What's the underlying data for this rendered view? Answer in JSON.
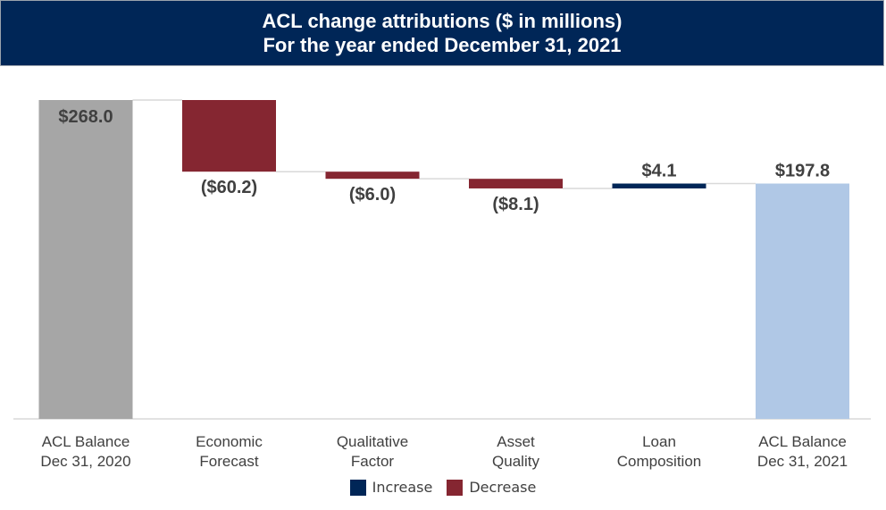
{
  "header": {
    "title_line1": "ACL change attributions ($ in millions)",
    "title_line2": "For the year ended December 31, 2021"
  },
  "chart_data": {
    "type": "bar",
    "subtype": "waterfall",
    "title": "ACL change attributions ($ in millions) For the year ended December 31, 2021",
    "categories": [
      [
        "ACL Balance",
        "Dec 31, 2020"
      ],
      [
        "Economic",
        "Forecast"
      ],
      [
        "Qualitative",
        "Factor"
      ],
      [
        "Asset",
        "Quality"
      ],
      [
        "Loan",
        "Composition"
      ],
      [
        "ACL Balance",
        "Dec 31, 2021"
      ]
    ],
    "values": [
      268.0,
      -60.2,
      -6.0,
      -8.1,
      4.1,
      197.8
    ],
    "kinds": [
      "total",
      "decrease",
      "decrease",
      "decrease",
      "increase",
      "total"
    ],
    "data_labels": [
      "$268.0",
      "($60.2)",
      "($6.0)",
      "($8.1)",
      "$4.1",
      "$197.8"
    ],
    "ylim": [
      0,
      268
    ],
    "colors": {
      "start_total": "#a6a6a6",
      "end_total": "#b0c8e6",
      "decrease": "#852631",
      "increase": "#002657",
      "connector": "#d9d9d9",
      "label": "#404040"
    },
    "legend": [
      {
        "label": "Increase",
        "color": "#002657"
      },
      {
        "label": "Decrease",
        "color": "#852631"
      }
    ],
    "legend_position": "bottom"
  }
}
